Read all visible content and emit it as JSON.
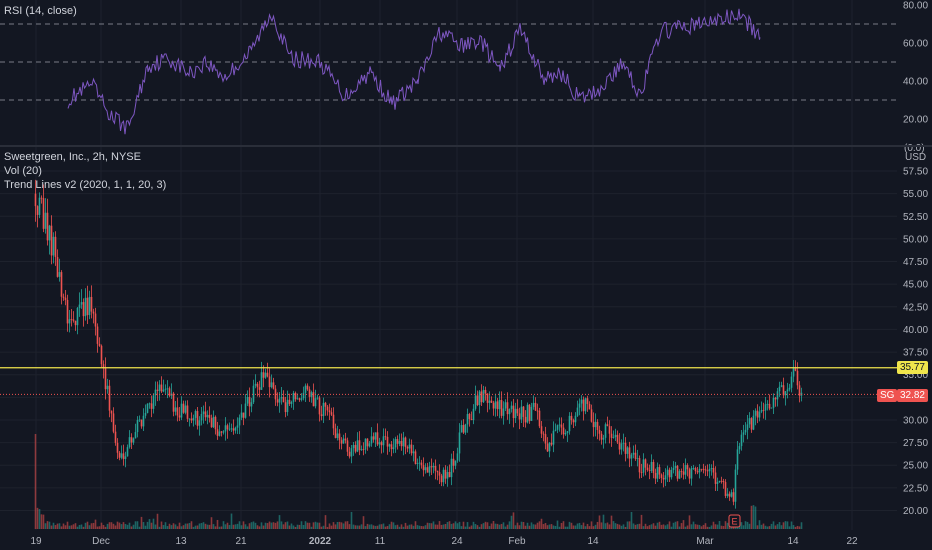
{
  "rsi": {
    "title": "RSI (14, close)",
    "levels": [
      70,
      50,
      30
    ],
    "ticks": [
      "80.00",
      "60.00",
      "40.00",
      "20.00"
    ],
    "cut_label": "(0.0)"
  },
  "main": {
    "title": "Sweetgreen, Inc., 2h, NYSE",
    "vol": "Vol (20)",
    "trend": "Trend Lines v2 (2020, 1, 1, 20, 3)",
    "currency": "USD",
    "ticks": [
      "57.50",
      "55.00",
      "52.50",
      "50.00",
      "47.50",
      "45.00",
      "42.50",
      "40.00",
      "37.50",
      "35.00",
      "32.50",
      "30.00",
      "27.50",
      "25.00",
      "22.50",
      "20.00"
    ],
    "resistance_value": "35.77",
    "symbol": "SG",
    "last_price": "32.82"
  },
  "time_axis": [
    "19",
    "Dec",
    "13",
    "21",
    "2022",
    "11",
    "24",
    "Feb",
    "14",
    "Mar",
    "14",
    "22"
  ],
  "earnings_marker": "E",
  "colors": {
    "background": "#131722",
    "up": "#26a69a",
    "down": "#ef5350",
    "rsi_line": "#7e57c2",
    "resistance": "#f0e54c",
    "last_price": "#ef5350"
  },
  "chart_data": {
    "type": "candlestick",
    "symbol": "Sweetgreen, Inc.",
    "interval": "2h",
    "exchange": "NYSE",
    "ylim": [
      19.2,
      59
    ],
    "resistance_line": 35.77,
    "last": 32.82,
    "close_path": [
      {
        "x": "19",
        "y": 55.0
      },
      {
        "x": "Nov 22",
        "y": 48.0
      },
      {
        "x": "Nov 25",
        "y": 41.0
      },
      {
        "x": "Nov 29",
        "y": 43.0
      },
      {
        "x": "Dec",
        "y": 37.0
      },
      {
        "x": "Dec 3",
        "y": 25.5
      },
      {
        "x": "Dec 7",
        "y": 30.0
      },
      {
        "x": "Dec 9",
        "y": 33.5
      },
      {
        "x": "13",
        "y": 31.0
      },
      {
        "x": "Dec 16",
        "y": 30.0
      },
      {
        "x": "Dec 18",
        "y": 28.5
      },
      {
        "x": "21",
        "y": 30.5
      },
      {
        "x": "Dec 23",
        "y": 34.5
      },
      {
        "x": "Dec 27",
        "y": 31.5
      },
      {
        "x": "Dec 29",
        "y": 33.0
      },
      {
        "x": "2022",
        "y": 31.5
      },
      {
        "x": "Jan 5",
        "y": 26.5
      },
      {
        "x": "11",
        "y": 28.0
      },
      {
        "x": "Jan 14",
        "y": 27.5
      },
      {
        "x": "Jan 18",
        "y": 25.5
      },
      {
        "x": "24",
        "y": 23.5
      },
      {
        "x": "Jan 26",
        "y": 30.0
      },
      {
        "x": "Jan 28",
        "y": 32.5
      },
      {
        "x": "Feb",
        "y": 30.5
      },
      {
        "x": "Feb 3",
        "y": 31.0
      },
      {
        "x": "Feb 7",
        "y": 27.0
      },
      {
        "x": "Feb 10",
        "y": 32.0
      },
      {
        "x": "14",
        "y": 29.0
      },
      {
        "x": "Feb 17",
        "y": 28.5
      },
      {
        "x": "Feb 22",
        "y": 25.0
      },
      {
        "x": "Feb 25",
        "y": 24.0
      },
      {
        "x": "Mar",
        "y": 24.5
      },
      {
        "x": "Mar 3",
        "y": 21.5
      },
      {
        "x": "Mar 5",
        "y": 27.5
      },
      {
        "x": "Mar 9",
        "y": 31.0
      },
      {
        "x": "Mar 11",
        "y": 32.0
      },
      {
        "x": "14",
        "y": 35.0
      },
      {
        "x": "Mar 15",
        "y": 32.82
      }
    ],
    "rsi_path": [
      {
        "x": "19",
        "y": 30
      },
      {
        "x": "Nov 22",
        "y": 38
      },
      {
        "x": "Nov 25",
        "y": 22
      },
      {
        "x": "Nov 29",
        "y": 15
      },
      {
        "x": "Dec",
        "y": 48
      },
      {
        "x": "Dec 3",
        "y": 52
      },
      {
        "x": "Dec 7",
        "y": 44
      },
      {
        "x": "13",
        "y": 50
      },
      {
        "x": "Dec 16",
        "y": 42
      },
      {
        "x": "21",
        "y": 55
      },
      {
        "x": "Dec 23",
        "y": 76
      },
      {
        "x": "Dec 27",
        "y": 52
      },
      {
        "x": "2022",
        "y": 50
      },
      {
        "x": "Jan 5",
        "y": 32
      },
      {
        "x": "11",
        "y": 45
      },
      {
        "x": "Jan 18",
        "y": 28
      },
      {
        "x": "24",
        "y": 40
      },
      {
        "x": "Jan 26",
        "y": 66
      },
      {
        "x": "Feb",
        "y": 58
      },
      {
        "x": "Feb 3",
        "y": 62
      },
      {
        "x": "Feb 7",
        "y": 45
      },
      {
        "x": "Feb 10",
        "y": 68
      },
      {
        "x": "14",
        "y": 40
      },
      {
        "x": "Feb 17",
        "y": 45
      },
      {
        "x": "Feb 22",
        "y": 30
      },
      {
        "x": "Feb 25",
        "y": 35
      },
      {
        "x": "Mar",
        "y": 50
      },
      {
        "x": "Mar 3",
        "y": 32
      },
      {
        "x": "Mar 5",
        "y": 66
      },
      {
        "x": "Mar 9",
        "y": 70
      },
      {
        "x": "14",
        "y": 75
      },
      {
        "x": "Mar 15",
        "y": 63
      }
    ],
    "rsi_ylim": [
      10,
      85
    ]
  }
}
